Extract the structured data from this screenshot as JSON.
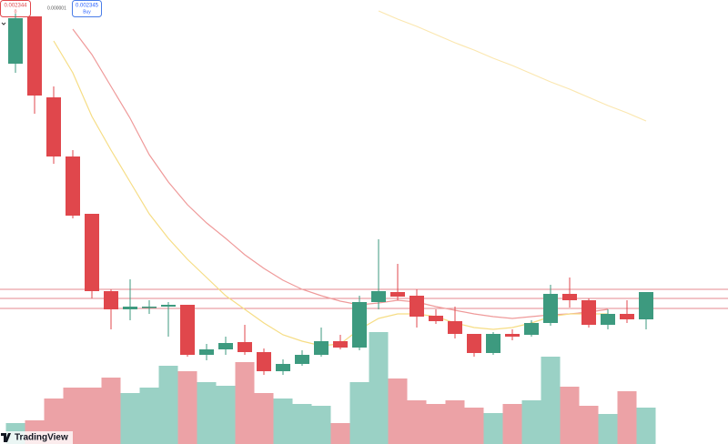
{
  "chart_data": {
    "type": "candlestick",
    "open": [
      418,
      470,
      381,
      316,
      253,
      168,
      148,
      151,
      151,
      153,
      98,
      104,
      112,
      101,
      80,
      88,
      98,
      113,
      106,
      156,
      167,
      163,
      141,
      135,
      121,
      100,
      121,
      120,
      133,
      165,
      158,
      131,
      143,
      137
    ],
    "high": [
      473,
      470,
      393,
      323,
      253,
      170,
      181,
      158,
      156,
      153,
      110,
      118,
      131,
      105,
      93,
      103,
      128,
      120,
      163,
      225,
      198,
      170,
      148,
      151,
      121,
      123,
      126,
      136,
      175,
      183,
      160,
      148,
      158,
      167
    ],
    "low": [
      408,
      363,
      308,
      248,
      160,
      126,
      136,
      143,
      118,
      96,
      92,
      98,
      98,
      76,
      76,
      86,
      96,
      104,
      103,
      148,
      158,
      128,
      132,
      116,
      96,
      98,
      114,
      118,
      130,
      150,
      128,
      126,
      133,
      126
    ],
    "close": [
      468,
      383,
      316,
      251,
      168,
      148,
      151,
      151,
      153,
      98,
      104,
      111,
      101,
      80,
      88,
      98,
      113,
      106,
      156,
      168,
      162,
      140,
      135,
      121,
      100,
      121,
      118,
      133,
      165,
      158,
      131,
      143,
      137,
      167
    ],
    "volume": [
      23,
      26,
      50,
      62,
      62,
      73,
      56,
      62,
      86,
      80,
      68,
      64,
      90,
      56,
      50,
      44,
      42,
      23,
      68,
      123,
      72,
      48,
      44,
      48,
      40,
      34,
      44,
      48,
      96,
      63,
      42,
      33,
      58,
      40
    ],
    "ylim": [
      0,
      488
    ],
    "up_color": "#3d9a7f",
    "down_color": "#e0474c",
    "volume_up_color": "#9ad1c5",
    "volume_down_color": "#eca2a6",
    "lines": [
      {
        "color": "#ef9a9a",
        "values": [
          null,
          null,
          null,
          456,
          428,
          393,
          358,
          318,
          288,
          263,
          243,
          226,
          208,
          193,
          180,
          170,
          163,
          157,
          153,
          155,
          158,
          156,
          151,
          147,
          143,
          140,
          138,
          140,
          142,
          143,
          145,
          148,
          null,
          null
        ]
      },
      {
        "color": "#f6dd85",
        "values": [
          null,
          null,
          443,
          408,
          360,
          323,
          288,
          253,
          226,
          203,
          183,
          163,
          148,
          133,
          120,
          113,
          108,
          110,
          126,
          138,
          143,
          143,
          140,
          133,
          128,
          126,
          128,
          133,
          140,
          143,
          143,
          143,
          null,
          null
        ]
      },
      {
        "color": "#fbe7b0",
        "values": [
          null,
          null,
          null,
          null,
          null,
          null,
          null,
          null,
          null,
          null,
          null,
          null,
          null,
          null,
          null,
          null,
          null,
          null,
          null,
          476,
          467,
          459,
          450,
          441,
          433,
          424,
          416,
          407,
          398,
          390,
          381,
          372,
          364,
          355
        ]
      }
    ],
    "levels": [
      170,
      160,
      149
    ],
    "level_color": "#e58a8f",
    "sell_price": "0.002344",
    "sell_sub": "0",
    "spread": "0.000001",
    "buy_price": "0.002345",
    "buy_sub": "Buy",
    "interval_count": "2",
    "brand": "TradingView"
  }
}
